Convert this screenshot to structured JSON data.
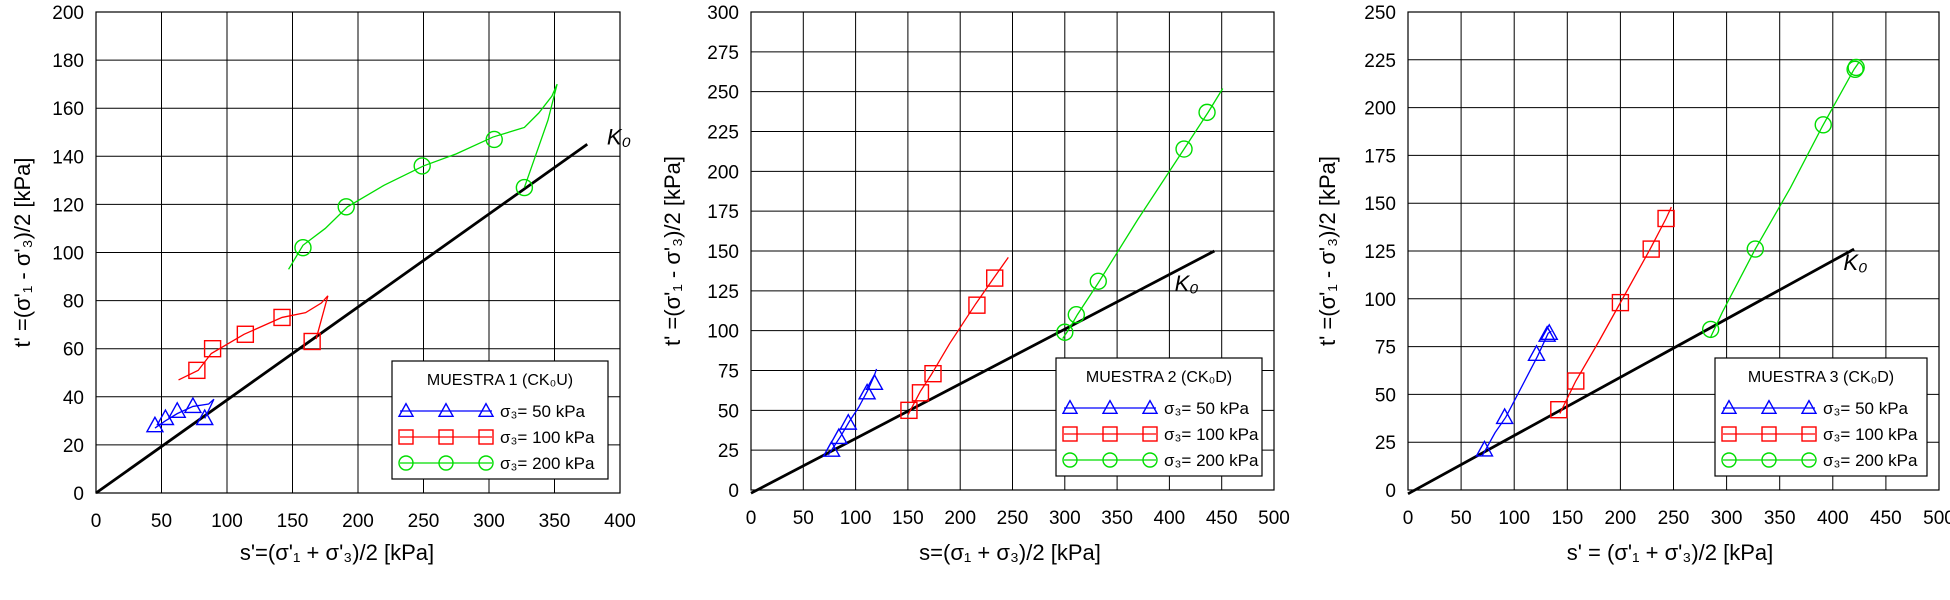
{
  "chart_data": [
    {
      "type": "scatter",
      "title": "",
      "xlabel": "s'=(σ'₁ + σ'₃)/2 [kPa]",
      "ylabel": "t' =(σ'₁ - σ'₃)/2 [kPa]",
      "xlim": [
        0,
        400
      ],
      "xticks": [
        0,
        50,
        100,
        150,
        200,
        250,
        300,
        350,
        400
      ],
      "ylim": [
        0,
        200
      ],
      "yticks": [
        0,
        20,
        40,
        60,
        80,
        100,
        120,
        140,
        160,
        180,
        200
      ],
      "grid": true,
      "k0_line": {
        "label": "K₀",
        "x": [
          0,
          375
        ],
        "y": [
          0,
          145
        ],
        "label_at": [
          390,
          145
        ]
      },
      "legend": {
        "title": "MUESTRA 1 (CK₀U)",
        "placement": "lower-right"
      },
      "series": [
        {
          "name": "σ₃= 50 kPa",
          "color": "#0000ff",
          "marker": "triangle",
          "line": [
            [
              45,
              27
            ],
            [
              53,
              30
            ],
            [
              62,
              33
            ],
            [
              74,
              36
            ],
            [
              86,
              37
            ],
            [
              90,
              39
            ],
            [
              83,
              31
            ]
          ],
          "points": [
            [
              45,
              28
            ],
            [
              53,
              31
            ],
            [
              62,
              34
            ],
            [
              74,
              36
            ],
            [
              83,
              31
            ]
          ]
        },
        {
          "name": "σ₃= 100 kPa",
          "color": "#ff0000",
          "marker": "square",
          "line": [
            [
              63,
              47
            ],
            [
              78,
              51
            ],
            [
              88,
              58
            ],
            [
              113,
              66
            ],
            [
              142,
              73
            ],
            [
              160,
              75
            ],
            [
              172,
              79
            ],
            [
              177,
              82
            ],
            [
              168,
              64
            ]
          ],
          "points": [
            [
              77,
              51
            ],
            [
              89,
              60
            ],
            [
              114,
              66
            ],
            [
              142,
              73
            ],
            [
              165,
              63
            ]
          ]
        },
        {
          "name": "σ₃= 200 kPa",
          "color": "#00dd00",
          "marker": "circle",
          "line": [
            [
              147,
              93
            ],
            [
              158,
              103
            ],
            [
              175,
              110
            ],
            [
              192,
              119
            ],
            [
              220,
              128
            ],
            [
              250,
              136
            ],
            [
              275,
              141
            ],
            [
              303,
              148
            ],
            [
              327,
              152
            ],
            [
              338,
              158
            ],
            [
              348,
              165
            ],
            [
              352,
              170
            ],
            [
              345,
              155
            ],
            [
              327,
              127
            ]
          ],
          "points": [
            [
              158,
              102
            ],
            [
              191,
              119
            ],
            [
              249,
              136
            ],
            [
              304,
              147
            ],
            [
              327,
              127
            ]
          ]
        }
      ]
    },
    {
      "type": "scatter",
      "title": "",
      "xlabel": "s=(σ₁ + σ₃)/2 [kPa]",
      "ylabel": "t' =(σ'₁ - σ'₃)/2 [kPa]",
      "xlim": [
        0,
        500
      ],
      "xticks": [
        0,
        50,
        100,
        150,
        200,
        250,
        300,
        350,
        400,
        450,
        500
      ],
      "ylim": [
        0,
        300
      ],
      "yticks": [
        0,
        25,
        50,
        75,
        100,
        125,
        150,
        175,
        200,
        225,
        250,
        275,
        300
      ],
      "grid": true,
      "k0_line": {
        "label": "K₀",
        "x": [
          0,
          443
        ],
        "y": [
          -2,
          150
        ],
        "label_at": [
          405,
          125
        ]
      },
      "legend": {
        "title": "MUESTRA 2 (CK₀D)",
        "placement": "lower-right"
      },
      "series": [
        {
          "name": "σ₃= 50 kPa",
          "color": "#0000ff",
          "marker": "triangle",
          "line": [
            [
              74,
              22
            ],
            [
              80,
              28
            ],
            [
              86,
              34
            ],
            [
              94,
              43
            ],
            [
              103,
              52
            ],
            [
              112,
              63
            ],
            [
              118,
              72
            ],
            [
              120,
              76
            ]
          ],
          "points": [
            [
              77,
              25
            ],
            [
              84,
              33
            ],
            [
              93,
              42
            ],
            [
              111,
              61
            ],
            [
              118,
              67
            ]
          ]
        },
        {
          "name": "σ₃= 100 kPa",
          "color": "#ff0000",
          "marker": "square",
          "line": [
            [
              150,
              47
            ],
            [
              162,
              62
            ],
            [
              172,
              72
            ],
            [
              190,
              92
            ],
            [
              215,
              117
            ],
            [
              232,
              133
            ],
            [
              246,
              146
            ]
          ],
          "points": [
            [
              151,
              50
            ],
            [
              162,
              61
            ],
            [
              174,
              73
            ],
            [
              216,
              116
            ],
            [
              233,
              133
            ]
          ]
        },
        {
          "name": "σ₃= 200 kPa",
          "color": "#00dd00",
          "marker": "circle",
          "line": [
            [
              298,
              95
            ],
            [
              305,
              102
            ],
            [
              312,
              110
            ],
            [
              332,
              130
            ],
            [
              370,
              170
            ],
            [
              412,
              212
            ],
            [
              437,
              237
            ],
            [
              451,
              252
            ]
          ],
          "points": [
            [
              300,
              99
            ],
            [
              311,
              110
            ],
            [
              332,
              131
            ],
            [
              414,
              214
            ],
            [
              436,
              237
            ]
          ]
        }
      ]
    },
    {
      "type": "scatter",
      "title": "",
      "xlabel": "s' = (σ'₁ + σ'₃)/2 [kPa]",
      "ylabel": "t' =(σ'₁ - σ'₃)/2 [kPa]",
      "xlim": [
        0,
        500
      ],
      "xticks": [
        0,
        50,
        100,
        150,
        200,
        250,
        300,
        350,
        400,
        450,
        500
      ],
      "ylim": [
        0,
        250
      ],
      "yticks": [
        0,
        25,
        50,
        75,
        100,
        125,
        150,
        175,
        200,
        225,
        250
      ],
      "grid": true,
      "k0_line": {
        "label": "K₀",
        "x": [
          0,
          420
        ],
        "y": [
          -2,
          126
        ],
        "label_at": [
          410,
          115
        ]
      },
      "legend": {
        "title": "MUESTRA 3 (CK₀D)",
        "placement": "lower-right"
      },
      "series": [
        {
          "name": "σ₃= 50 kPa",
          "color": "#0000ff",
          "marker": "triangle",
          "line": [
            [
              70,
              18
            ],
            [
              82,
              30
            ],
            [
              92,
              38
            ],
            [
              108,
              55
            ],
            [
              122,
              70
            ],
            [
              132,
              82
            ],
            [
              135,
              83
            ]
          ],
          "points": [
            [
              72,
              21
            ],
            [
              91,
              38
            ],
            [
              121,
              71
            ],
            [
              131,
              81
            ],
            [
              133,
              82
            ]
          ]
        },
        {
          "name": "σ₃= 100 kPa",
          "color": "#ff0000",
          "marker": "square",
          "line": [
            [
              143,
              40
            ],
            [
              158,
              57
            ],
            [
              180,
              78
            ],
            [
              200,
              98
            ],
            [
              228,
              126
            ],
            [
              243,
              142
            ],
            [
              248,
              148
            ]
          ],
          "points": [
            [
              142,
              42
            ],
            [
              158,
              57
            ],
            [
              200,
              98
            ],
            [
              229,
              126
            ],
            [
              243,
              142
            ]
          ]
        },
        {
          "name": "σ₃= 200 kPa",
          "color": "#00dd00",
          "marker": "circle",
          "line": [
            [
              285,
              80
            ],
            [
              296,
              93
            ],
            [
              327,
              126
            ],
            [
              360,
              158
            ],
            [
              390,
              190
            ],
            [
              420,
              220
            ],
            [
              425,
              224
            ]
          ],
          "points": [
            [
              285,
              84
            ],
            [
              327,
              126
            ],
            [
              391,
              191
            ],
            [
              421,
              220
            ],
            [
              422,
              221
            ]
          ]
        }
      ]
    }
  ]
}
